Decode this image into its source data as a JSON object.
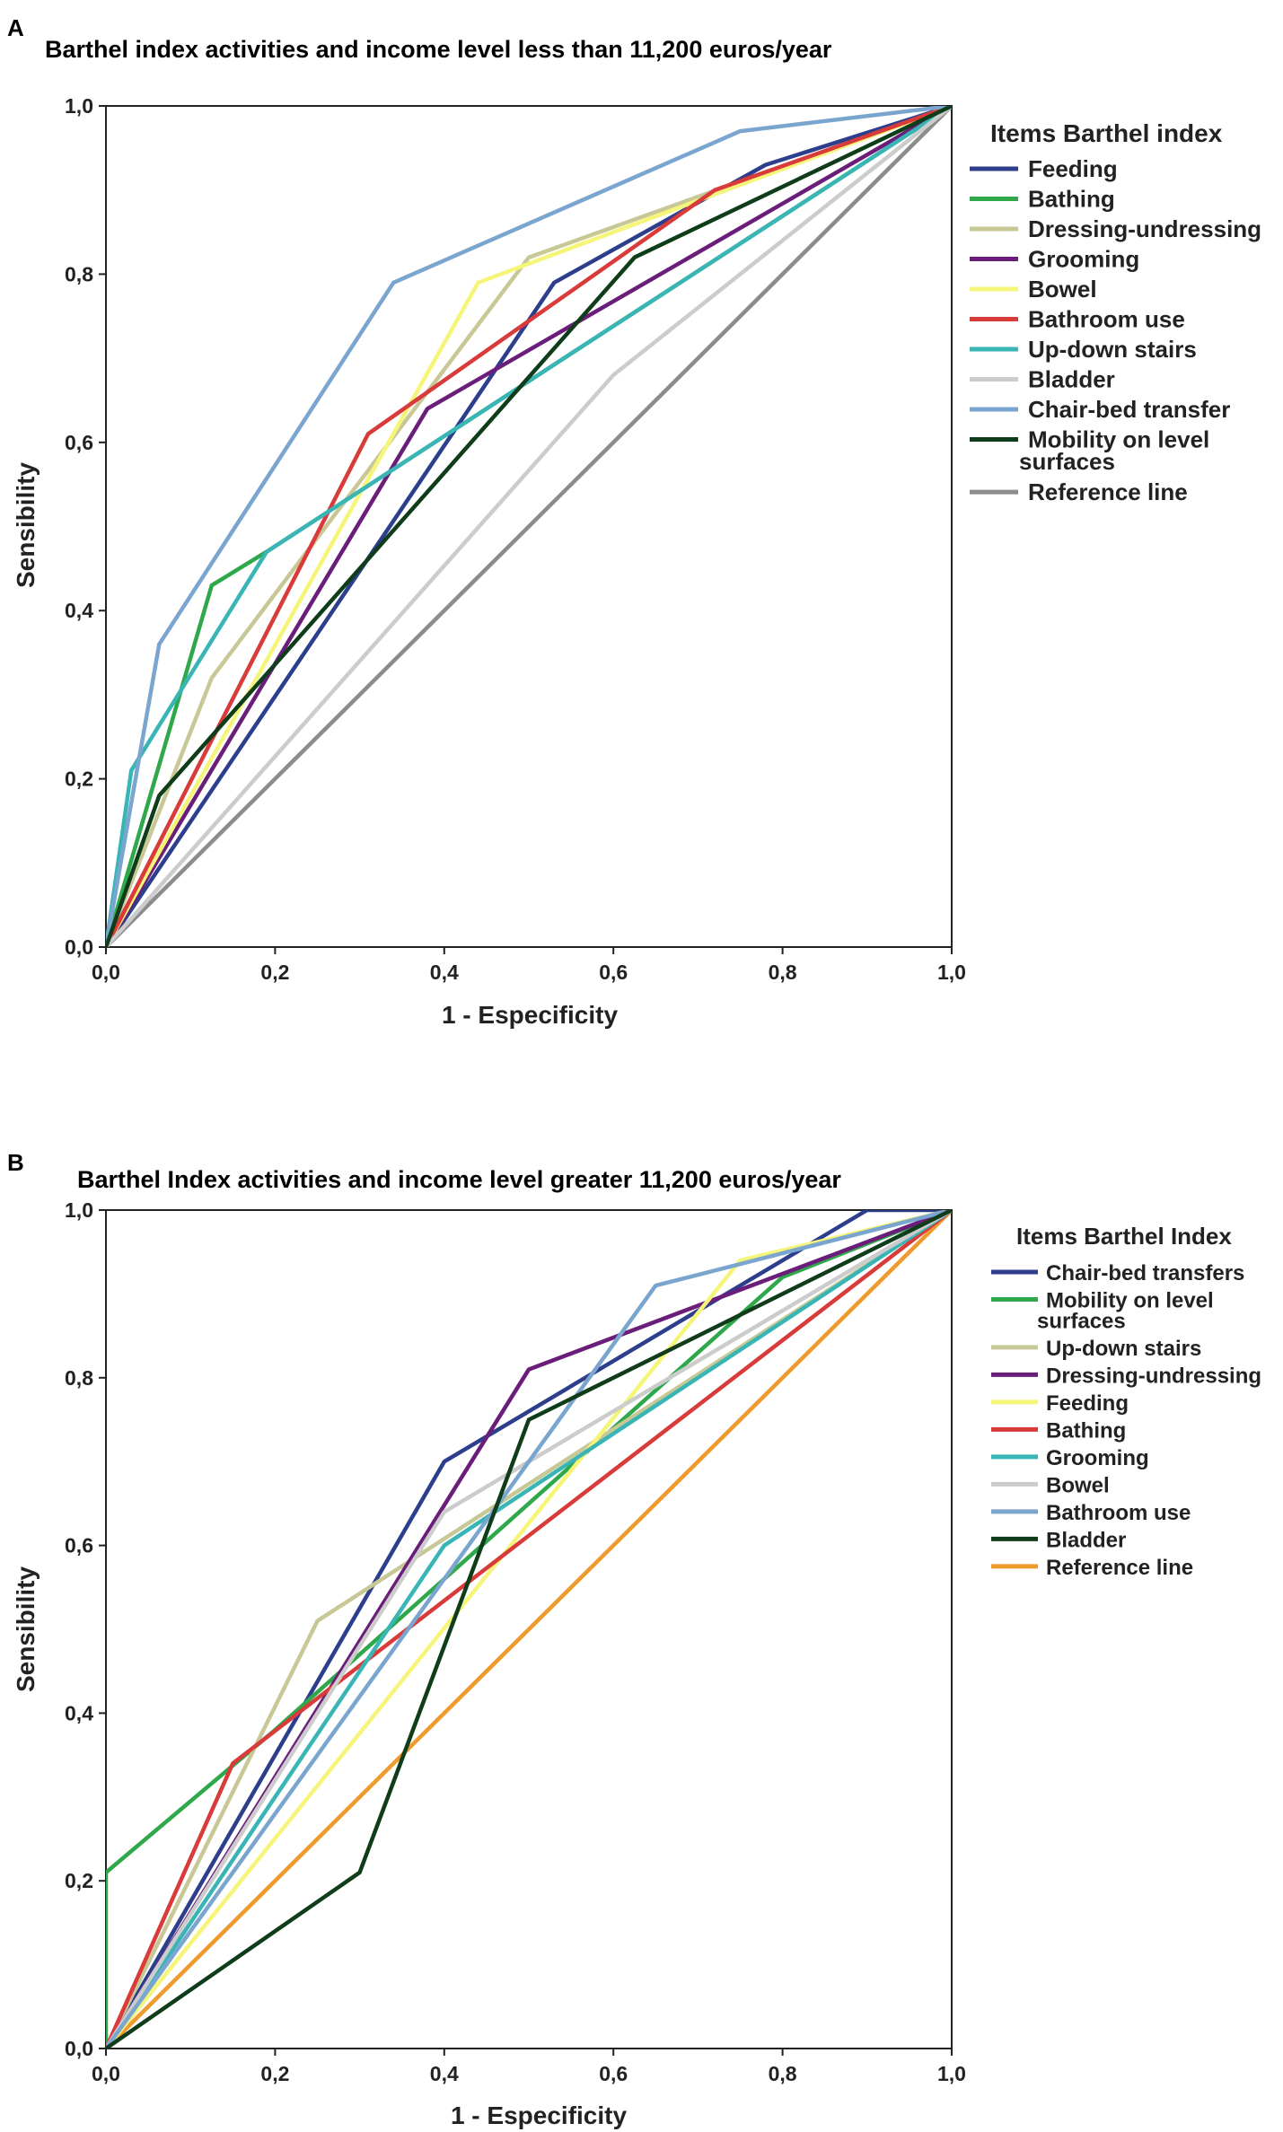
{
  "chart_data": [
    {
      "panel": "A",
      "type": "line",
      "title": "Barthel index activities and income level less than 11,200 euros/year",
      "xlabel": "1 - Especificity",
      "ylabel": "Sensibility",
      "xlim": [
        0,
        1
      ],
      "ylim": [
        0,
        1
      ],
      "x_ticks": [
        "0,0",
        "0,2",
        "0,4",
        "0,6",
        "0,8",
        "1,0"
      ],
      "y_ticks": [
        "0,0",
        "0,2",
        "0,4",
        "0,6",
        "0,8",
        "1,0"
      ],
      "legend_title": "Items Barthel index",
      "legend_position": "right",
      "series": [
        {
          "name": "Feeding",
          "color": "#2c3e8c",
          "points": [
            [
              0,
              0
            ],
            [
              0.53,
              0.79
            ],
            [
              0.78,
              0.93
            ],
            [
              1,
              1
            ]
          ]
        },
        {
          "name": "Bathing",
          "color": "#2ea84a",
          "points": [
            [
              0,
              0
            ],
            [
              0.125,
              0.43
            ],
            [
              0.19,
              0.47
            ],
            [
              1,
              1
            ]
          ]
        },
        {
          "name": "Dressing-undressing",
          "color": "#c8c896",
          "points": [
            [
              0,
              0
            ],
            [
              0.125,
              0.32
            ],
            [
              0.5,
              0.82
            ],
            [
              0.75,
              0.91
            ],
            [
              1,
              1
            ]
          ]
        },
        {
          "name": "Grooming",
          "color": "#6a1e7a",
          "points": [
            [
              0,
              0
            ],
            [
              0.38,
              0.64
            ],
            [
              1,
              1
            ]
          ]
        },
        {
          "name": "Bowel",
          "color": "#f5f57a",
          "points": [
            [
              0,
              0
            ],
            [
              0.44,
              0.79
            ],
            [
              1,
              1
            ]
          ]
        },
        {
          "name": "Bathroom use",
          "color": "#d93a3a",
          "points": [
            [
              0,
              0
            ],
            [
              0.31,
              0.61
            ],
            [
              0.72,
              0.9
            ],
            [
              1,
              1
            ]
          ]
        },
        {
          "name": "Up-down stairs",
          "color": "#3ab5b5",
          "points": [
            [
              0,
              0
            ],
            [
              0.03,
              0.21
            ],
            [
              0.19,
              0.47
            ],
            [
              1,
              1
            ]
          ]
        },
        {
          "name": "Bladder",
          "color": "#cccccc",
          "points": [
            [
              0,
              0
            ],
            [
              0.6,
              0.68
            ],
            [
              1,
              1
            ]
          ]
        },
        {
          "name": "Chair-bed transfer",
          "color": "#7aa5cf",
          "points": [
            [
              0,
              0
            ],
            [
              0.063,
              0.36
            ],
            [
              0.34,
              0.79
            ],
            [
              0.75,
              0.97
            ],
            [
              1,
              1
            ]
          ]
        },
        {
          "name": "Mobility on level surfaces",
          "color": "#0f3d1a",
          "points": [
            [
              0,
              0
            ],
            [
              0.063,
              0.18
            ],
            [
              0.625,
              0.82
            ],
            [
              1,
              1
            ]
          ]
        },
        {
          "name": "Reference line",
          "color": "#8c8c8c",
          "points": [
            [
              0,
              0
            ],
            [
              1,
              1
            ]
          ]
        }
      ]
    },
    {
      "panel": "B",
      "type": "line",
      "title": "Barthel Index activities and income level greater 11,200 euros/year",
      "xlabel": "1 - Especificity",
      "ylabel": "Sensibility",
      "xlim": [
        0,
        1
      ],
      "ylim": [
        0,
        1
      ],
      "x_ticks": [
        "0,0",
        "0,2",
        "0,4",
        "0,6",
        "0,8",
        "1,0"
      ],
      "y_ticks": [
        "0,0",
        "0,2",
        "0,4",
        "0,6",
        "0,8",
        "1,0"
      ],
      "legend_title": "Items Barthel Index",
      "legend_position": "right",
      "series": [
        {
          "name": "Chair-bed transfers",
          "color": "#2c3e8c",
          "points": [
            [
              0,
              0
            ],
            [
              0.4,
              0.7
            ],
            [
              0.9,
              1
            ],
            [
              1,
              1
            ]
          ]
        },
        {
          "name": "Mobility on level surfaces",
          "color": "#2ea84a",
          "points": [
            [
              0,
              0
            ],
            [
              0,
              0.21
            ],
            [
              0.2,
              0.38
            ],
            [
              0.8,
              0.92
            ],
            [
              1,
              1
            ]
          ]
        },
        {
          "name": "Up-down stairs",
          "color": "#c8c896",
          "points": [
            [
              0,
              0
            ],
            [
              0.25,
              0.51
            ],
            [
              1,
              1
            ]
          ]
        },
        {
          "name": "Dressing-undressing",
          "color": "#6a1e7a",
          "points": [
            [
              0,
              0
            ],
            [
              0.5,
              0.81
            ],
            [
              1,
              1
            ]
          ]
        },
        {
          "name": "Feeding",
          "color": "#f5f57a",
          "points": [
            [
              0,
              0
            ],
            [
              0.75,
              0.94
            ],
            [
              1,
              1
            ]
          ]
        },
        {
          "name": "Bathing",
          "color": "#d93a3a",
          "points": [
            [
              0,
              0
            ],
            [
              0.15,
              0.34
            ],
            [
              1,
              1
            ]
          ]
        },
        {
          "name": "Grooming",
          "color": "#3ab5b5",
          "points": [
            [
              0,
              0
            ],
            [
              0.4,
              0.6
            ],
            [
              1,
              1
            ]
          ]
        },
        {
          "name": "Bowel",
          "color": "#cccccc",
          "points": [
            [
              0,
              0
            ],
            [
              0.4,
              0.64
            ],
            [
              1,
              1
            ]
          ]
        },
        {
          "name": "Bathroom use",
          "color": "#7aa5cf",
          "points": [
            [
              0,
              0
            ],
            [
              0.65,
              0.91
            ],
            [
              1,
              1
            ]
          ]
        },
        {
          "name": "Bladder",
          "color": "#0f3d1a",
          "points": [
            [
              0,
              0
            ],
            [
              0.3,
              0.21
            ],
            [
              0.5,
              0.75
            ],
            [
              1,
              1
            ]
          ]
        },
        {
          "name": "Reference line",
          "color": "#ee9a2c",
          "points": [
            [
              0,
              0
            ],
            [
              1,
              1
            ]
          ]
        }
      ]
    }
  ]
}
